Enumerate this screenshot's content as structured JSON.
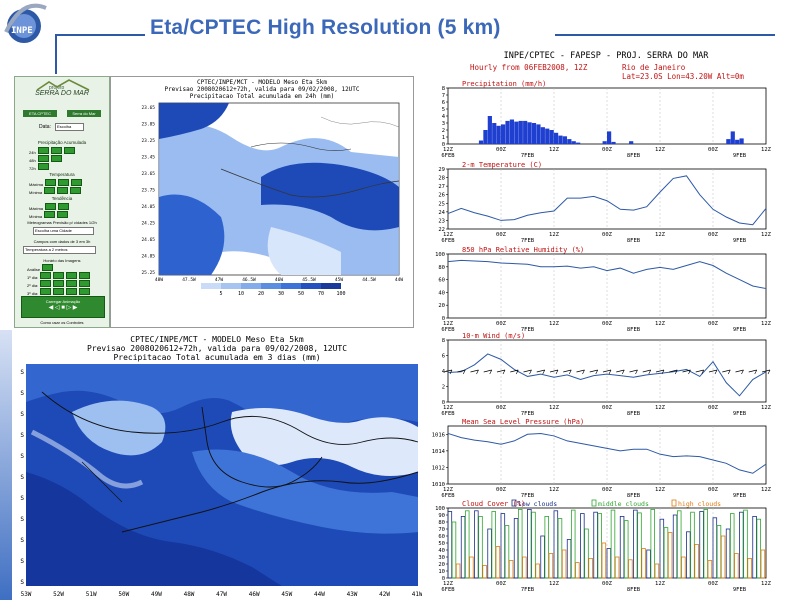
{
  "header": {
    "title": "Eta/CPTEC High Resolution (5 km)",
    "logo_text": "INPE"
  },
  "control_panel": {
    "brand_top": "projeto",
    "brand": "SERRA DO MAR",
    "btn1": "ETA CPTEC",
    "btn2": "Serra do Mar",
    "date_label": "Data:",
    "date_value": "Escolha",
    "sections": [
      {
        "title": "Precipitação Acumulada",
        "rows": [
          "24h",
          "48h",
          "72h"
        ]
      },
      {
        "title": "Temperatura",
        "rows": [
          "Máxima",
          "Mínima"
        ]
      },
      {
        "title": "Tendência",
        "rows": [
          "Máxima",
          "Mínima"
        ]
      }
    ],
    "meteogram_label": "Meteogramas Previsão p/ cidades 1/2h",
    "meteogram_select": "Escolha uma Cidade",
    "fields_label": "Campos com dados de 3 em 3h",
    "fields_select": "Temperatura a 2 metros",
    "hours_label": "Horário das Imagens",
    "days": [
      "Análise",
      "1º dia:",
      "2º dia:",
      "3º dia:"
    ],
    "loop_label": "Carregar Animação",
    "footer": "Como usar os Controles"
  },
  "small_map": {
    "header_line1": "CPTEC/INPE/MCT - MODELO Meso Eta 5km",
    "header_line2": "Previsao 2008020612+72h, valida para 09/02/2008, 12UTC",
    "header_line3": "Precipitacao Total acumulada em 24h (mm)",
    "lat_labels": [
      "23.65",
      "23.85",
      "23.25",
      "23.45",
      "23.65",
      "23.75",
      "24.05",
      "24.25",
      "24.65",
      "24.85",
      "25.25"
    ],
    "lon_labels": [
      "48W",
      "47.5W",
      "47W",
      "46.5W",
      "46W",
      "45.5W",
      "45W",
      "44.5W",
      "44W"
    ],
    "colorbar": [
      "5",
      "10",
      "20",
      "30",
      "50",
      "70",
      "100"
    ]
  },
  "big_map": {
    "header_line1": "CPTEC/INPE/MCT - MODELO Meso Eta 5km",
    "header_line2": "Previsao 2008020612+72h, valida para 09/02/2008, 12UTC",
    "header_line3": "Precipitacao Total acumulada em 3 dias (mm)",
    "lon_labels": [
      "53W",
      "52W",
      "51W",
      "50W",
      "49W",
      "48W",
      "47W",
      "46W",
      "45W",
      "44W",
      "43W",
      "42W",
      "41W"
    ],
    "lat_labels": [
      "S",
      "S",
      "S",
      "S",
      "S",
      "S",
      "S",
      "S",
      "S",
      "S",
      "S"
    ]
  },
  "chart_data": [
    {
      "type": "bar",
      "title": "INPE/CPTEC - FAPESP - PROJ. SERRA DO MAR",
      "subtitle_left": "Hourly from 06FEB2008, 12Z",
      "subtitle_right": "Rio de Janeiro",
      "location": "Lat=23.0S Lon=43.20W Alt=0m",
      "ylabel": "Precipitation (mm/h)",
      "ylim": [
        0,
        8
      ],
      "yticks": [
        0,
        1,
        2,
        3,
        4,
        5,
        6,
        7,
        8
      ],
      "x_tick_labels": [
        "12Z",
        "00Z",
        "12Z",
        "00Z",
        "12Z",
        "00Z",
        "12Z"
      ],
      "date_labels": [
        "6FEB",
        "7FEB",
        "8FEB",
        "9FEB"
      ],
      "x_hours": [
        1,
        2,
        3,
        4,
        5,
        6,
        7,
        8,
        9,
        10,
        11,
        12,
        13,
        14,
        15,
        16,
        17,
        18,
        19,
        20,
        21,
        22,
        23,
        24,
        25,
        26,
        27,
        28,
        29,
        30,
        31,
        32,
        33,
        34,
        35,
        36,
        37,
        38,
        39,
        40,
        41,
        42,
        43,
        44,
        45,
        46,
        47,
        48,
        49,
        50,
        51,
        52,
        53,
        54,
        55,
        56,
        57,
        58,
        59,
        60,
        61,
        62,
        63,
        64,
        65,
        66,
        67,
        68,
        69,
        70,
        71,
        72
      ],
      "values": [
        0,
        0,
        0,
        0,
        0,
        0,
        0,
        0.5,
        2,
        4,
        3,
        2.6,
        2.8,
        3.3,
        3.5,
        3.2,
        3.3,
        3.3,
        3.1,
        3,
        2.8,
        2.4,
        2.2,
        2,
        1.6,
        1.2,
        1.1,
        0.7,
        0.4,
        0.2,
        0,
        0,
        0,
        0,
        0,
        0.4,
        1.8,
        0.3,
        0,
        0,
        0,
        0.4,
        0,
        0,
        0,
        0,
        0,
        0,
        0,
        0,
        0,
        0,
        0,
        0,
        0,
        0,
        0,
        0,
        0,
        0,
        0,
        0,
        0,
        0.7,
        1.8,
        0.6,
        0.8,
        0,
        0,
        0,
        0,
        0
      ]
    },
    {
      "type": "line",
      "ylabel": "2-m Temperature (C)",
      "ylim": [
        22,
        29
      ],
      "yticks": [
        22,
        23,
        24,
        25,
        26,
        27,
        28,
        29
      ],
      "x_tick_labels": [
        "12Z",
        "00Z",
        "12Z",
        "00Z",
        "12Z",
        "00Z",
        "12Z"
      ],
      "date_labels": [
        "6FEB",
        "7FEB",
        "8FEB",
        "9FEB"
      ],
      "x": [
        0,
        3,
        6,
        9,
        12,
        15,
        18,
        21,
        24,
        27,
        30,
        33,
        36,
        39,
        42,
        45,
        48,
        51,
        54,
        57,
        60,
        63,
        66,
        69,
        72
      ],
      "values": [
        23.8,
        24.4,
        23.9,
        23.5,
        23.0,
        23.1,
        23.6,
        23.9,
        24.1,
        25.6,
        25.6,
        25.8,
        25.3,
        24.3,
        24.2,
        24.6,
        26.3,
        27.9,
        28.2,
        26.0,
        24.3,
        23.4,
        22.7,
        22.5,
        24.4
      ]
    },
    {
      "type": "line",
      "ylabel": "850 hPa Relative Humidity (%)",
      "ylim": [
        0,
        100
      ],
      "yticks": [
        0,
        20,
        40,
        60,
        80,
        100
      ],
      "x_tick_labels": [
        "12Z",
        "00Z",
        "12Z",
        "00Z",
        "12Z",
        "00Z",
        "12Z"
      ],
      "date_labels": [
        "6FEB",
        "7FEB",
        "8FEB",
        "9FEB"
      ],
      "x": [
        0,
        3,
        6,
        9,
        12,
        15,
        18,
        21,
        24,
        27,
        30,
        33,
        36,
        39,
        42,
        45,
        48,
        51,
        54,
        57,
        60,
        63,
        66,
        69,
        72
      ],
      "values": [
        88,
        90,
        89,
        88,
        86,
        85,
        84,
        80,
        80,
        81,
        78,
        80,
        74,
        78,
        70,
        76,
        79,
        76,
        82,
        88,
        82,
        70,
        60,
        50,
        46
      ]
    },
    {
      "type": "line",
      "ylabel": "10-m Wind (m/s)",
      "ylim": [
        0,
        8
      ],
      "yticks": [
        0,
        2,
        4,
        6,
        8
      ],
      "x_tick_labels": [
        "12Z",
        "00Z",
        "12Z",
        "00Z",
        "12Z",
        "00Z",
        "12Z"
      ],
      "date_labels": [
        "6FEB",
        "7FEB",
        "8FEB",
        "9FEB"
      ],
      "x": [
        0,
        3,
        6,
        9,
        12,
        15,
        18,
        21,
        24,
        27,
        30,
        33,
        36,
        39,
        42,
        45,
        48,
        51,
        54,
        57,
        60,
        63,
        66,
        69,
        72
      ],
      "values": [
        3.8,
        3.9,
        4.8,
        6.2,
        5.5,
        4.2,
        3.3,
        3.6,
        3.2,
        3.5,
        2.9,
        3.4,
        3.6,
        3.4,
        3.2,
        3.5,
        3.7,
        3.9,
        4.2,
        3.3,
        5.2,
        2.5,
        0.8,
        2.9,
        3.9
      ]
    },
    {
      "type": "line",
      "ylabel": "Mean Sea Level Pressure (hPa)",
      "ylim": [
        1010,
        1017
      ],
      "yticks": [
        1010,
        1012,
        1014,
        1016
      ],
      "x_tick_labels": [
        "12Z",
        "00Z",
        "12Z",
        "00Z",
        "12Z",
        "00Z",
        "12Z"
      ],
      "date_labels": [
        "6FEB",
        "7FEB",
        "8FEB",
        "9FEB"
      ],
      "x": [
        0,
        3,
        6,
        9,
        12,
        15,
        18,
        21,
        24,
        27,
        30,
        33,
        36,
        39,
        42,
        45,
        48,
        51,
        54,
        57,
        60,
        63,
        66,
        69,
        72
      ],
      "values": [
        1016.1,
        1015.6,
        1015.3,
        1015.1,
        1014.8,
        1015.2,
        1016.0,
        1016.1,
        1015.8,
        1015.2,
        1014.9,
        1014.6,
        1014.3,
        1014.0,
        1014.2,
        1014.2,
        1013.6,
        1013.3,
        1013.4,
        1013.3,
        1012.9,
        1012.5,
        1011.7,
        1011.3,
        1012.4
      ]
    },
    {
      "type": "bar",
      "ylabel": "Cloud Cover (%)",
      "legend": [
        "low clouds",
        "middle clouds",
        "high clouds"
      ],
      "ylim": [
        0,
        100
      ],
      "yticks": [
        0,
        10,
        20,
        30,
        40,
        50,
        60,
        70,
        80,
        90,
        100
      ],
      "x_tick_labels": [
        "12Z",
        "00Z",
        "12Z",
        "00Z",
        "12Z",
        "00Z",
        "12Z"
      ],
      "date_labels": [
        "6FEB",
        "7FEB",
        "8FEB",
        "9FEB"
      ],
      "x": [
        0,
        3,
        6,
        9,
        12,
        15,
        18,
        21,
        24,
        27,
        30,
        33,
        36,
        39,
        42,
        45,
        48,
        51,
        54,
        57,
        60,
        63,
        66,
        69
      ],
      "series": [
        {
          "name": "low clouds",
          "values": [
            95,
            88,
            96,
            70,
            92,
            85,
            98,
            60,
            96,
            55,
            92,
            94,
            42,
            88,
            97,
            40,
            84,
            90,
            66,
            95,
            86,
            70,
            94,
            88
          ]
        },
        {
          "name": "middle clouds",
          "values": [
            80,
            96,
            88,
            95,
            75,
            98,
            94,
            88,
            85,
            97,
            70,
            92,
            97,
            82,
            93,
            98,
            72,
            96,
            94,
            98,
            75,
            92,
            97,
            84
          ]
        },
        {
          "name": "high clouds",
          "values": [
            20,
            30,
            18,
            45,
            25,
            30,
            20,
            35,
            40,
            22,
            28,
            50,
            30,
            26,
            42,
            20,
            65,
            30,
            48,
            25,
            60,
            35,
            28,
            40
          ]
        }
      ]
    }
  ],
  "colors": {
    "title_blue": "#3b68b8",
    "line_blue": "#2d59a6",
    "precip_blue": "#1f3fd0",
    "label_red": "#c21212",
    "panel_green": "#2f9a2f",
    "map_dark_blue": "#1e4ab7",
    "map_light_blue": "#8fb5ee"
  }
}
